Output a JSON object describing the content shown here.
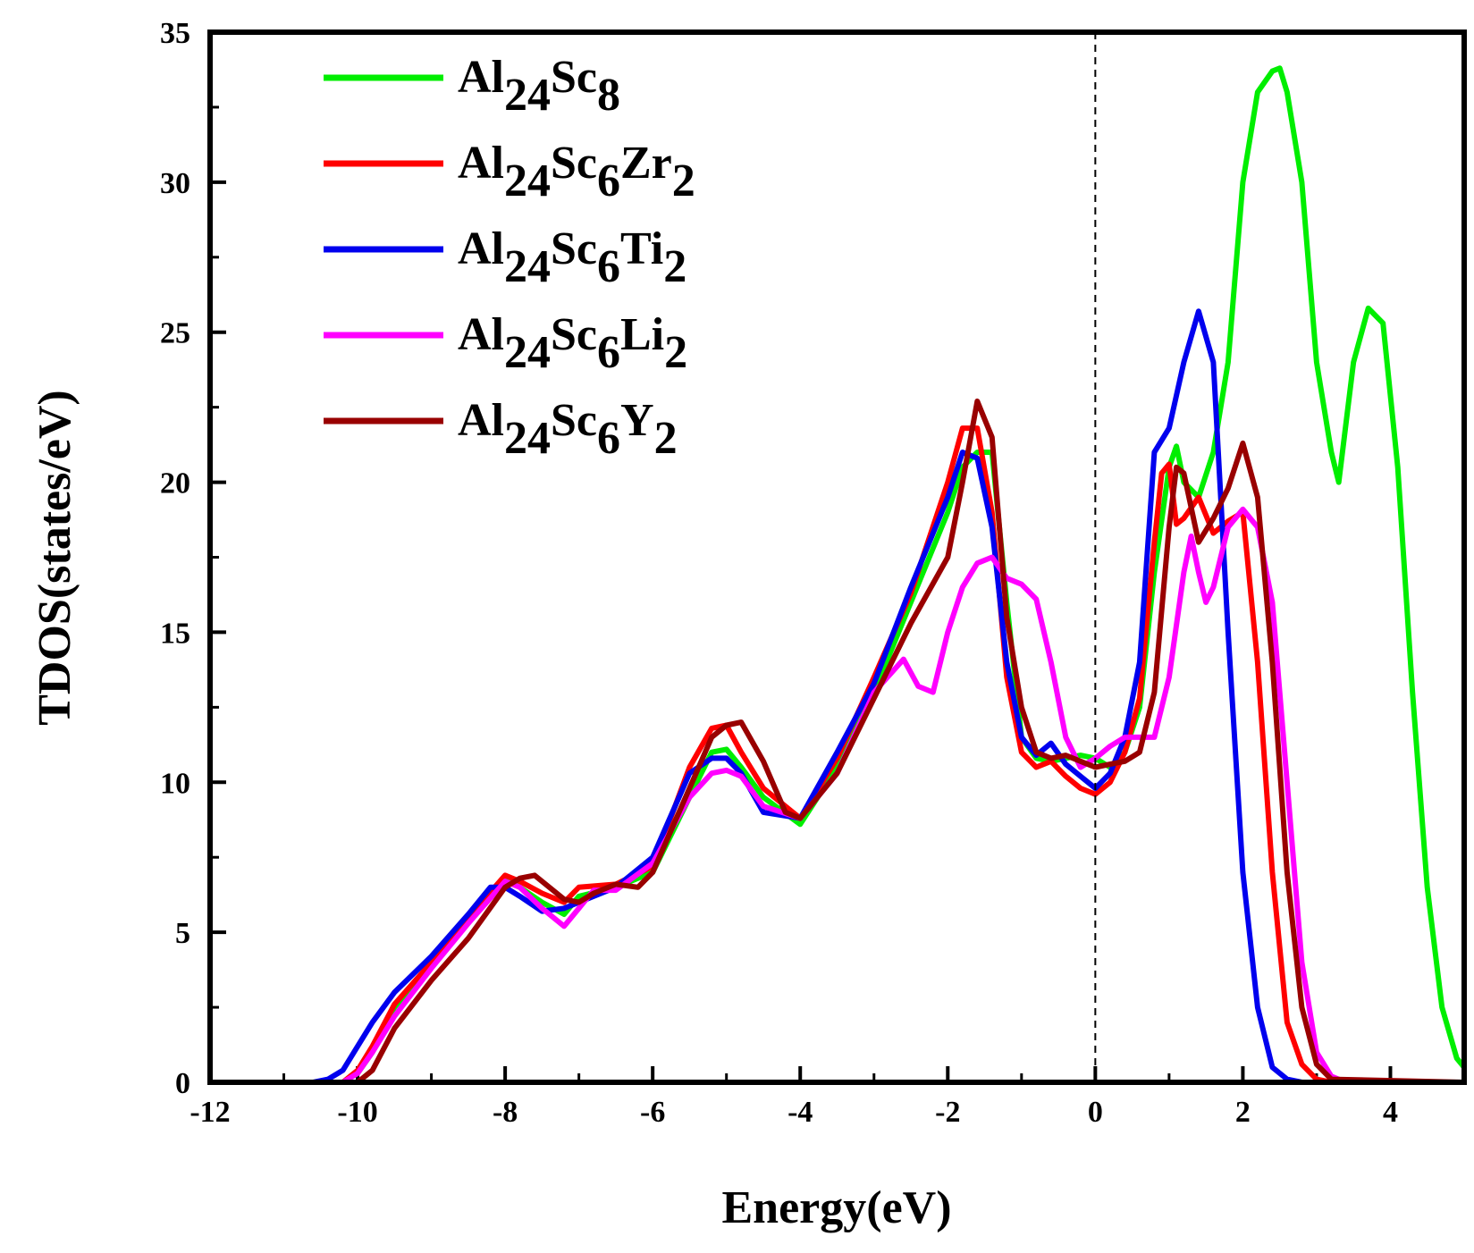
{
  "chart_data": {
    "type": "line",
    "title": "",
    "xlabel": "Energy(eV)",
    "ylabel": "TDOS(states/eV)",
    "xlim": [
      -12,
      5
    ],
    "ylim": [
      0,
      35
    ],
    "xticks": [
      -12,
      -10,
      -8,
      -6,
      -4,
      -2,
      0,
      2,
      4
    ],
    "yticks": [
      0,
      5,
      10,
      15,
      20,
      25,
      30,
      35
    ],
    "fermi_level": 0,
    "legend_position": "top-left",
    "series": [
      {
        "name": "Al24Sc8",
        "legend": {
          "base": "Al",
          "subs": [
            [
              "24",
              "Sc"
            ],
            [
              "8",
              ""
            ]
          ]
        },
        "color": "#00ee00",
        "x": [
          -12,
          -10.5,
          -10.2,
          -10.0,
          -9.8,
          -9.5,
          -9.0,
          -8.5,
          -8.0,
          -7.8,
          -7.5,
          -7.2,
          -7.0,
          -6.5,
          -6.0,
          -5.5,
          -5.2,
          -5.0,
          -4.8,
          -4.5,
          -4.0,
          -3.5,
          -3.0,
          -2.5,
          -2.0,
          -1.8,
          -1.6,
          -1.4,
          -1.2,
          -1.0,
          -0.8,
          -0.6,
          -0.4,
          -0.2,
          0.0,
          0.2,
          0.4,
          0.6,
          0.8,
          1.0,
          1.1,
          1.2,
          1.4,
          1.6,
          1.8,
          2.0,
          2.2,
          2.4,
          2.5,
          2.6,
          2.8,
          3.0,
          3.2,
          3.3,
          3.5,
          3.7,
          3.9,
          4.1,
          4.3,
          4.5,
          4.7,
          4.9,
          5.0
        ],
        "y": [
          0,
          0,
          0,
          0.3,
          1.0,
          2.5,
          4.0,
          5.5,
          6.8,
          6.5,
          6.0,
          5.6,
          6.2,
          6.5,
          7.0,
          9.5,
          11.0,
          11.1,
          10.5,
          9.5,
          8.6,
          10.5,
          13.0,
          16.0,
          19.0,
          20.5,
          21.0,
          21.0,
          16.0,
          11.5,
          10.8,
          10.7,
          10.8,
          10.9,
          10.8,
          10.5,
          11.0,
          12.5,
          17.0,
          20.5,
          21.2,
          20.0,
          19.5,
          21.0,
          24.0,
          30.0,
          33.0,
          33.7,
          33.8,
          33.0,
          30.0,
          24.0,
          21.0,
          20.0,
          24.0,
          25.8,
          25.3,
          20.5,
          13.0,
          6.5,
          2.5,
          0.8,
          0.5
        ]
      },
      {
        "name": "Al24Sc6Zr2",
        "legend": {
          "base": "Al",
          "subs": [
            [
              "24",
              "Sc"
            ],
            [
              "6",
              "Zr"
            ],
            [
              "2",
              ""
            ]
          ]
        },
        "color": "#ff0000",
        "x": [
          -12,
          -10.5,
          -10.2,
          -10.0,
          -9.8,
          -9.5,
          -9.0,
          -8.5,
          -8.0,
          -7.8,
          -7.5,
          -7.2,
          -7.0,
          -6.5,
          -6.0,
          -5.5,
          -5.2,
          -5.0,
          -4.8,
          -4.5,
          -4.0,
          -3.5,
          -3.0,
          -2.5,
          -2.0,
          -1.8,
          -1.6,
          -1.4,
          -1.2,
          -1.0,
          -0.8,
          -0.6,
          -0.4,
          -0.2,
          0.0,
          0.2,
          0.4,
          0.6,
          0.8,
          0.9,
          1.0,
          1.1,
          1.2,
          1.4,
          1.6,
          1.8,
          2.0,
          2.2,
          2.4,
          2.6,
          2.8,
          3.0,
          3.2,
          5.0
        ],
        "y": [
          0,
          0,
          0,
          0.4,
          1.2,
          2.6,
          4.0,
          5.5,
          6.9,
          6.7,
          6.3,
          6.0,
          6.5,
          6.6,
          7.2,
          10.5,
          11.8,
          11.9,
          11.0,
          9.8,
          8.8,
          10.8,
          13.5,
          16.3,
          20.0,
          21.8,
          21.8,
          19.0,
          13.5,
          11.0,
          10.5,
          10.7,
          10.2,
          9.8,
          9.6,
          10.0,
          11.0,
          12.8,
          18.0,
          20.3,
          20.6,
          18.6,
          18.8,
          19.5,
          18.3,
          18.7,
          19.0,
          14.0,
          7.0,
          2.0,
          0.6,
          0.1,
          0,
          0
        ]
      },
      {
        "name": "Al24Sc6Ti2",
        "legend": {
          "base": "Al",
          "subs": [
            [
              "24",
              "Sc"
            ],
            [
              "6",
              "Ti"
            ],
            [
              "2",
              ""
            ]
          ]
        },
        "color": "#0000ee",
        "x": [
          -12,
          -10.6,
          -10.4,
          -10.2,
          -10.0,
          -9.8,
          -9.5,
          -9.0,
          -8.5,
          -8.2,
          -8.0,
          -7.8,
          -7.5,
          -7.2,
          -7.0,
          -6.5,
          -6.0,
          -5.5,
          -5.2,
          -5.0,
          -4.8,
          -4.5,
          -4.0,
          -3.5,
          -3.0,
          -2.5,
          -2.0,
          -1.8,
          -1.6,
          -1.4,
          -1.2,
          -1.0,
          -0.8,
          -0.6,
          -0.4,
          -0.2,
          0.0,
          0.2,
          0.4,
          0.6,
          0.8,
          1.0,
          1.2,
          1.4,
          1.6,
          1.8,
          2.0,
          2.2,
          2.4,
          2.6,
          2.8,
          5.0
        ],
        "y": [
          0,
          0,
          0.1,
          0.4,
          1.2,
          2.0,
          3.0,
          4.2,
          5.6,
          6.5,
          6.5,
          6.2,
          5.7,
          5.8,
          6.0,
          6.5,
          7.5,
          10.3,
          10.8,
          10.8,
          10.3,
          9.0,
          8.8,
          11.0,
          13.3,
          16.5,
          19.5,
          21.0,
          20.8,
          18.5,
          14.0,
          11.5,
          10.9,
          11.3,
          10.6,
          10.2,
          9.8,
          10.3,
          11.5,
          14.0,
          21.0,
          21.8,
          24.0,
          25.7,
          24.0,
          15.0,
          7.0,
          2.5,
          0.5,
          0.1,
          0,
          0
        ]
      },
      {
        "name": "Al24Sc6Li2",
        "legend": {
          "base": "Al",
          "subs": [
            [
              "24",
              "Sc"
            ],
            [
              "6",
              "Li"
            ],
            [
              "2",
              ""
            ]
          ]
        },
        "color": "#ff00ff",
        "x": [
          -12,
          -10.2,
          -10.0,
          -9.8,
          -9.5,
          -9.0,
          -8.5,
          -8.0,
          -7.8,
          -7.5,
          -7.2,
          -7.0,
          -6.8,
          -6.5,
          -6.0,
          -5.5,
          -5.2,
          -5.0,
          -4.8,
          -4.5,
          -4.0,
          -3.5,
          -3.0,
          -2.6,
          -2.4,
          -2.2,
          -2.0,
          -1.8,
          -1.6,
          -1.4,
          -1.2,
          -1.0,
          -0.8,
          -0.6,
          -0.4,
          -0.2,
          0.0,
          0.2,
          0.4,
          0.6,
          0.8,
          1.0,
          1.2,
          1.3,
          1.4,
          1.5,
          1.6,
          1.8,
          2.0,
          2.2,
          2.4,
          2.6,
          2.8,
          3.0,
          3.2,
          3.4,
          5.0
        ],
        "y": [
          0,
          0,
          0.3,
          1.0,
          2.2,
          3.8,
          5.3,
          6.7,
          6.5,
          5.8,
          5.2,
          5.8,
          6.4,
          6.4,
          7.3,
          9.5,
          10.3,
          10.4,
          10.2,
          9.2,
          8.8,
          10.3,
          13.0,
          14.1,
          13.2,
          13.0,
          15.0,
          16.5,
          17.3,
          17.5,
          16.8,
          16.6,
          16.1,
          14.0,
          11.5,
          10.5,
          10.8,
          11.2,
          11.5,
          11.5,
          11.5,
          13.5,
          17.0,
          18.2,
          17.0,
          16.0,
          16.5,
          18.5,
          19.1,
          18.5,
          16.0,
          10.0,
          4.0,
          1.0,
          0.2,
          0,
          0
        ]
      },
      {
        "name": "Al24Sc6Y2",
        "legend": {
          "base": "Al",
          "subs": [
            [
              "24",
              "Sc"
            ],
            [
              "6",
              "Y"
            ],
            [
              "2",
              ""
            ]
          ]
        },
        "color": "#990000",
        "x": [
          -12,
          -10.0,
          -9.8,
          -9.5,
          -9.0,
          -8.5,
          -8.0,
          -7.8,
          -7.6,
          -7.4,
          -7.2,
          -7.0,
          -6.8,
          -6.5,
          -6.2,
          -6.0,
          -5.5,
          -5.2,
          -5.0,
          -4.8,
          -4.5,
          -4.2,
          -4.0,
          -3.5,
          -3.0,
          -2.5,
          -2.0,
          -1.8,
          -1.6,
          -1.4,
          -1.2,
          -1.0,
          -0.8,
          -0.6,
          -0.4,
          -0.2,
          0.0,
          0.2,
          0.4,
          0.6,
          0.8,
          1.0,
          1.1,
          1.2,
          1.4,
          1.6,
          1.8,
          2.0,
          2.2,
          2.4,
          2.6,
          2.8,
          3.0,
          3.2,
          5.0
        ],
        "y": [
          0,
          0,
          0.4,
          1.8,
          3.4,
          4.8,
          6.5,
          6.8,
          6.9,
          6.5,
          6.1,
          6.0,
          6.3,
          6.6,
          6.5,
          7.0,
          9.8,
          11.5,
          11.9,
          12.0,
          10.7,
          9.0,
          8.8,
          10.3,
          12.8,
          15.3,
          17.5,
          20.0,
          22.7,
          21.5,
          15.5,
          12.5,
          11.0,
          10.8,
          10.9,
          10.7,
          10.5,
          10.6,
          10.7,
          11.0,
          13.0,
          18.5,
          20.5,
          20.3,
          18.0,
          18.8,
          19.8,
          21.3,
          19.5,
          14.0,
          7.0,
          2.5,
          0.6,
          0.1,
          0
        ]
      }
    ]
  }
}
